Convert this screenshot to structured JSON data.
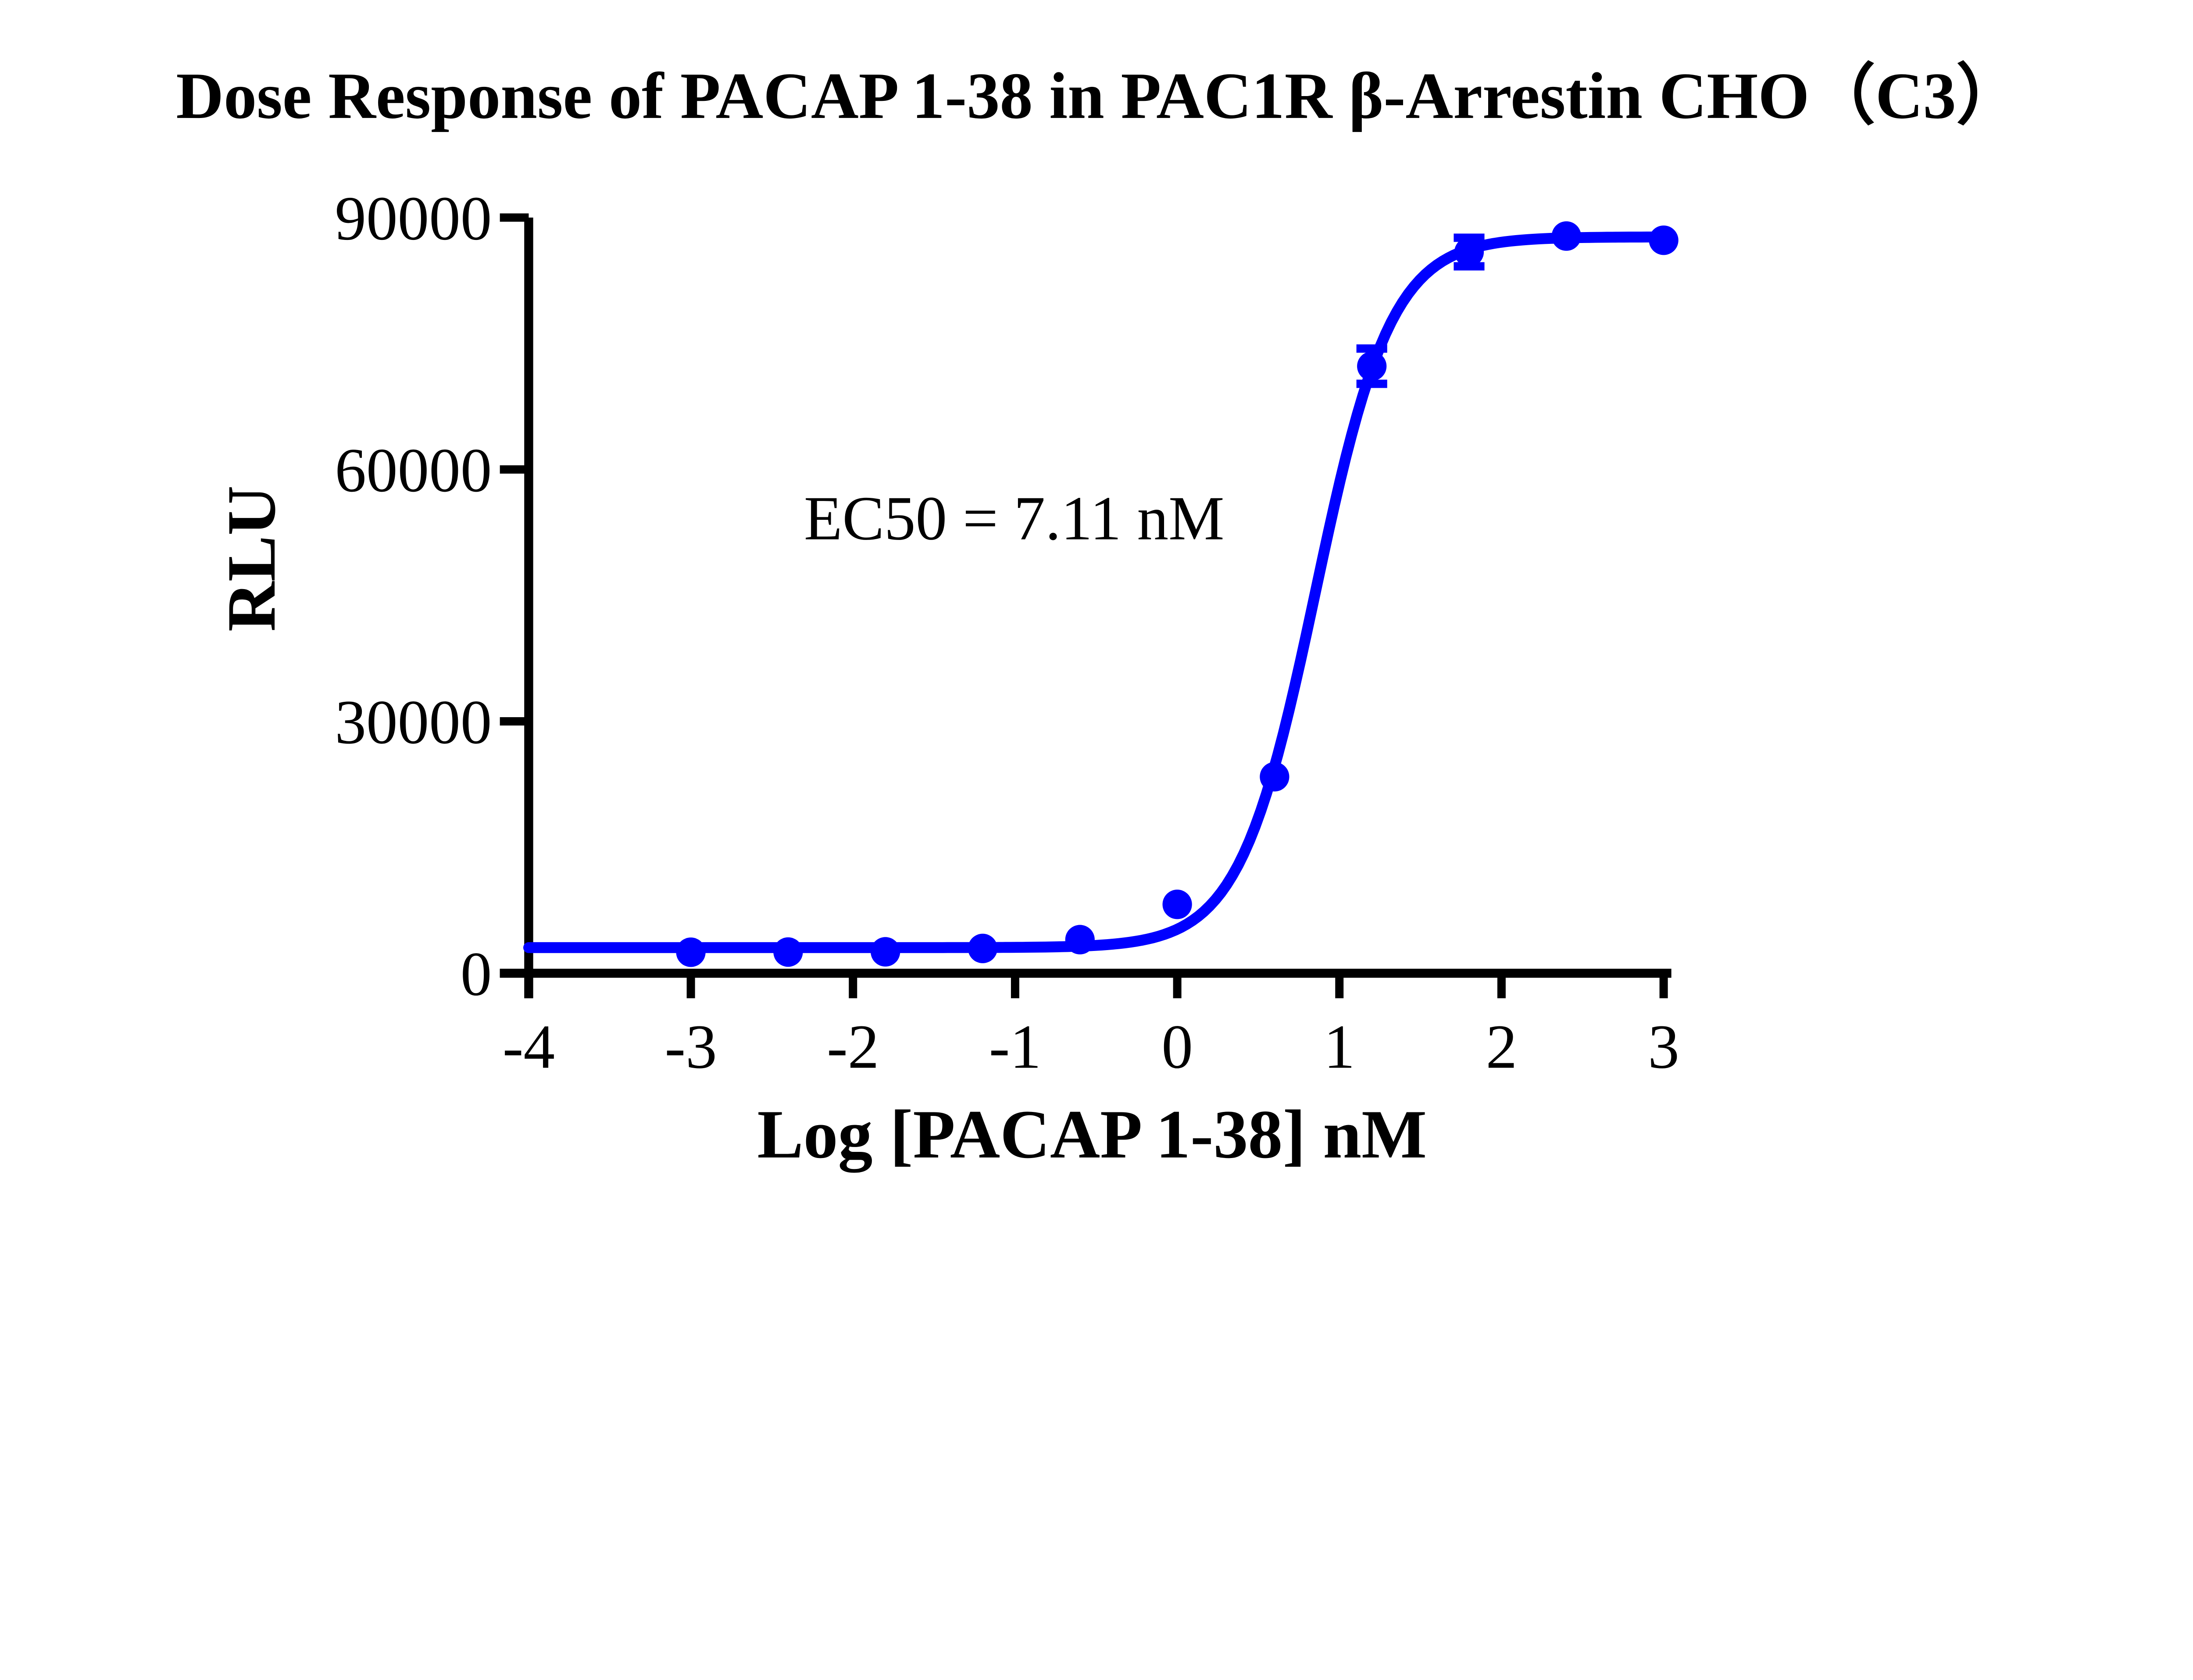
{
  "title": "Dose Response of PACAP 1-38 in PAC1R β-Arrestin CHO（C3）",
  "annotation": "EC50 = 7.11 nM",
  "colors": {
    "curve": "#0000FF",
    "axis": "#000000",
    "text": "#000000",
    "background": "#FFFFFF"
  },
  "chart_data": {
    "type": "scatter",
    "title": "Dose Response of PACAP 1-38 in PAC1R β-Arrestin CHO（C3）",
    "xlabel": "Log [PACAP 1-38] nM",
    "ylabel": "RLU",
    "xlim": [
      -4,
      3
    ],
    "ylim": [
      0,
      90000
    ],
    "x_ticks": [
      -4,
      -3,
      -2,
      -1,
      0,
      1,
      2,
      3
    ],
    "y_ticks": [
      0,
      30000,
      60000,
      90000
    ],
    "grid": false,
    "legend": "none",
    "series": [
      {
        "name": "PACAP 1-38",
        "marker": "circle",
        "points": [
          {
            "x": -3.0,
            "y": 2500,
            "err": 0
          },
          {
            "x": -2.4,
            "y": 2520,
            "err": 0
          },
          {
            "x": -1.8,
            "y": 2550,
            "err": 0
          },
          {
            "x": -1.2,
            "y": 2950,
            "err": 0
          },
          {
            "x": -0.6,
            "y": 4000,
            "err": 0
          },
          {
            "x": 0.0,
            "y": 8200,
            "err": 0
          },
          {
            "x": 0.6,
            "y": 23400,
            "err": 0
          },
          {
            "x": 1.2,
            "y": 72300,
            "err": 2100
          },
          {
            "x": 1.8,
            "y": 85900,
            "err": 1700
          },
          {
            "x": 2.4,
            "y": 87800,
            "err": 0
          },
          {
            "x": 3.0,
            "y": 87300,
            "err": 0
          }
        ]
      }
    ],
    "fit_curve": {
      "model": "4PL sigmoid",
      "bottom": 3050,
      "top": 87700,
      "log_ec50": 0.852,
      "hill_slope": 1.85,
      "ec50_nM": 7.11,
      "ec50_label": "EC50 = 7.11 nM"
    }
  }
}
